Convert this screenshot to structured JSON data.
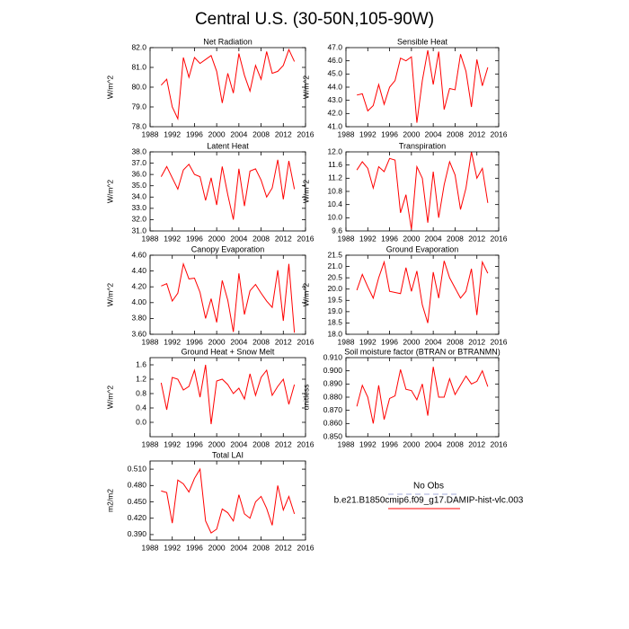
{
  "title": "Central U.S. (30-50N,105-90W)",
  "chart_data": [
    {
      "type": "line",
      "title": "Net Radiation",
      "ylabel": "W/m^2",
      "color": "#ff0000",
      "x": [
        1990,
        1991,
        1992,
        1993,
        1994,
        1995,
        1996,
        1997,
        1998,
        1999,
        2000,
        2001,
        2002,
        2003,
        2004,
        2005,
        2006,
        2007,
        2008,
        2009,
        2010,
        2011,
        2012,
        2013,
        2014
      ],
      "values": [
        80.1,
        80.4,
        79.0,
        78.4,
        81.5,
        80.5,
        81.5,
        81.2,
        81.4,
        81.6,
        80.8,
        79.2,
        80.7,
        79.7,
        81.7,
        80.6,
        79.8,
        81.1,
        80.4,
        81.8,
        80.7,
        80.8,
        81.1,
        81.9,
        81.3
      ],
      "xlim": [
        1988,
        2016
      ],
      "xticks": [
        1988,
        1992,
        1996,
        2000,
        2004,
        2008,
        2012,
        2016
      ],
      "ylim": [
        78,
        82
      ],
      "yticks": [
        {
          "value": 78,
          "label": "78.0"
        },
        {
          "value": 79,
          "label": "79.0"
        },
        {
          "value": 80,
          "label": "80.0"
        },
        {
          "value": 81,
          "label": "81.0"
        },
        {
          "value": 82,
          "label": "82.0"
        }
      ]
    },
    {
      "type": "line",
      "title": "Sensible Heat",
      "ylabel": "W/m^2",
      "color": "#ff0000",
      "x": [
        1990,
        1991,
        1992,
        1993,
        1994,
        1995,
        1996,
        1997,
        1998,
        1999,
        2000,
        2001,
        2002,
        2003,
        2004,
        2005,
        2006,
        2007,
        2008,
        2009,
        2010,
        2011,
        2012,
        2013,
        2014
      ],
      "values": [
        43.4,
        43.5,
        42.2,
        42.6,
        44.2,
        42.7,
        44.0,
        44.5,
        46.2,
        46.0,
        46.3,
        41.3,
        44.5,
        46.8,
        44.2,
        46.7,
        42.3,
        43.9,
        43.8,
        46.5,
        45.2,
        42.5,
        46.1,
        44.1,
        45.5
      ],
      "xlim": [
        1988,
        2016
      ],
      "xticks": [
        1988,
        1992,
        1996,
        2000,
        2004,
        2008,
        2012,
        2016
      ],
      "ylim": [
        41,
        47
      ],
      "yticks": [
        {
          "value": 41,
          "label": "41.0"
        },
        {
          "value": 42,
          "label": "42.0"
        },
        {
          "value": 43,
          "label": "43.0"
        },
        {
          "value": 44,
          "label": "44.0"
        },
        {
          "value": 45,
          "label": "45.0"
        },
        {
          "value": 46,
          "label": "46.0"
        },
        {
          "value": 47,
          "label": "47.0"
        }
      ]
    },
    {
      "type": "line",
      "title": "Latent Heat",
      "ylabel": "W/m^2",
      "color": "#ff0000",
      "x": [
        1990,
        1991,
        1992,
        1993,
        1994,
        1995,
        1996,
        1997,
        1998,
        1999,
        2000,
        2001,
        2002,
        2003,
        2004,
        2005,
        2006,
        2007,
        2008,
        2009,
        2010,
        2011,
        2012,
        2013,
        2014
      ],
      "values": [
        35.8,
        36.7,
        35.7,
        34.7,
        36.4,
        36.9,
        36.0,
        35.8,
        33.7,
        35.7,
        33.3,
        36.7,
        34.2,
        32.0,
        36.5,
        33.2,
        36.3,
        36.5,
        35.5,
        34.0,
        34.8,
        37.3,
        33.8,
        37.2,
        34.7
      ],
      "xlim": [
        1988,
        2016
      ],
      "xticks": [
        1988,
        1992,
        1996,
        2000,
        2004,
        2008,
        2012,
        2016
      ],
      "ylim": [
        31,
        38
      ],
      "yticks": [
        {
          "value": 31,
          "label": "31.0"
        },
        {
          "value": 32,
          "label": "32.0"
        },
        {
          "value": 33,
          "label": "33.0"
        },
        {
          "value": 34,
          "label": "34.0"
        },
        {
          "value": 35,
          "label": "35.0"
        },
        {
          "value": 36,
          "label": "36.0"
        },
        {
          "value": 37,
          "label": "37.0"
        },
        {
          "value": 38,
          "label": "38.0"
        }
      ]
    },
    {
      "type": "line",
      "title": "Transpiration",
      "ylabel": "W/m^2",
      "color": "#ff0000",
      "x": [
        1990,
        1991,
        1992,
        1993,
        1994,
        1995,
        1996,
        1997,
        1998,
        1999,
        2000,
        2001,
        2002,
        2003,
        2004,
        2005,
        2006,
        2007,
        2008,
        2009,
        2010,
        2011,
        2012,
        2013,
        2014
      ],
      "values": [
        11.45,
        11.7,
        11.5,
        10.9,
        11.55,
        11.4,
        11.8,
        11.75,
        10.15,
        10.7,
        9.65,
        11.55,
        11.2,
        9.85,
        11.4,
        10.0,
        11.0,
        11.7,
        11.3,
        10.25,
        10.9,
        12.0,
        11.2,
        11.5,
        10.45
      ],
      "xlim": [
        1988,
        2016
      ],
      "xticks": [
        1988,
        1992,
        1996,
        2000,
        2004,
        2008,
        2012,
        2016
      ],
      "ylim": [
        9.6,
        12.0
      ],
      "yticks": [
        9.6,
        {
          "value": 10,
          "label": "10.0"
        },
        10.4,
        10.8,
        11.2,
        11.6,
        {
          "value": 12,
          "label": "12.0"
        }
      ]
    },
    {
      "type": "line",
      "title": "Canopy Evaporation",
      "ylabel": "W/m^2",
      "color": "#ff0000",
      "x": [
        1990,
        1991,
        1992,
        1993,
        1994,
        1995,
        1996,
        1997,
        1998,
        1999,
        2000,
        2001,
        2002,
        2003,
        2004,
        2005,
        2006,
        2007,
        2008,
        2009,
        2010,
        2011,
        2012,
        2013,
        2014
      ],
      "values": [
        4.21,
        4.24,
        4.02,
        4.12,
        4.49,
        4.3,
        4.31,
        4.13,
        3.8,
        4.05,
        3.75,
        4.28,
        4.03,
        3.63,
        4.37,
        3.85,
        4.15,
        4.23,
        4.12,
        4.02,
        3.94,
        4.41,
        3.77,
        4.49,
        3.62
      ],
      "xlim": [
        1988,
        2016
      ],
      "xticks": [
        1988,
        1992,
        1996,
        2000,
        2004,
        2008,
        2012,
        2016
      ],
      "ylim": [
        3.6,
        4.6
      ],
      "yticks": [
        {
          "value": 3.6,
          "label": "3.60"
        },
        {
          "value": 3.8,
          "label": "3.80"
        },
        {
          "value": 4.0,
          "label": "4.00"
        },
        {
          "value": 4.2,
          "label": "4.20"
        },
        {
          "value": 4.4,
          "label": "4.40"
        },
        {
          "value": 4.6,
          "label": "4.60"
        }
      ]
    },
    {
      "type": "line",
      "title": "Ground Evaporation",
      "ylabel": "W/m^2",
      "color": "#ff0000",
      "x": [
        1990,
        1991,
        1992,
        1993,
        1994,
        1995,
        1996,
        1997,
        1998,
        1999,
        2000,
        2001,
        2002,
        2003,
        2004,
        2005,
        2006,
        2007,
        2008,
        2009,
        2010,
        2011,
        2012,
        2013,
        2014
      ],
      "values": [
        19.95,
        20.65,
        20.1,
        19.6,
        20.5,
        21.2,
        19.9,
        19.85,
        19.8,
        20.95,
        19.9,
        20.8,
        19.3,
        18.5,
        20.75,
        19.6,
        21.25,
        20.5,
        20.05,
        19.6,
        19.9,
        20.9,
        18.85,
        21.2,
        20.7
      ],
      "xlim": [
        1988,
        2016
      ],
      "xticks": [
        1988,
        1992,
        1996,
        2000,
        2004,
        2008,
        2012,
        2016
      ],
      "ylim": [
        18,
        21.5
      ],
      "yticks": [
        {
          "value": 18,
          "label": "18.0"
        },
        18.5,
        {
          "value": 19,
          "label": "19.0"
        },
        19.5,
        {
          "value": 20,
          "label": "20.0"
        },
        20.5,
        {
          "value": 21,
          "label": "21.0"
        },
        21.5
      ]
    },
    {
      "type": "line",
      "title": "Ground Heat + Snow Melt",
      "ylabel": "W/m^2",
      "color": "#ff0000",
      "x": [
        1990,
        1991,
        1992,
        1993,
        1994,
        1995,
        1996,
        1997,
        1998,
        1999,
        2000,
        2001,
        2002,
        2003,
        2004,
        2005,
        2006,
        2007,
        2008,
        2009,
        2010,
        2011,
        2012,
        2013,
        2014
      ],
      "values": [
        1.1,
        0.35,
        1.25,
        1.2,
        0.9,
        1.0,
        1.45,
        0.7,
        1.6,
        -0.05,
        1.15,
        1.2,
        1.05,
        0.8,
        0.95,
        0.65,
        1.35,
        0.75,
        1.25,
        1.45,
        0.75,
        1.0,
        1.2,
        0.5,
        1.05
      ],
      "xlim": [
        1988,
        2016
      ],
      "xticks": [
        1988,
        1992,
        1996,
        2000,
        2004,
        2008,
        2012,
        2016
      ],
      "ylim": [
        -0.4,
        1.8
      ],
      "yticks": [
        {
          "value": 0,
          "label": "0.0"
        },
        0.4,
        0.8,
        1.2,
        1.6
      ]
    },
    {
      "type": "line",
      "title": "Soil moisture factor (BTRAN or BTRANMN)",
      "ylabel": "unitless",
      "color": "#ff0000",
      "x": [
        1990,
        1991,
        1992,
        1993,
        1994,
        1995,
        1996,
        1997,
        1998,
        1999,
        2000,
        2001,
        2002,
        2003,
        2004,
        2005,
        2006,
        2007,
        2008,
        2009,
        2010,
        2011,
        2012,
        2013,
        2014
      ],
      "values": [
        0.873,
        0.889,
        0.88,
        0.86,
        0.889,
        0.863,
        0.879,
        0.881,
        0.901,
        0.886,
        0.885,
        0.878,
        0.89,
        0.866,
        0.903,
        0.88,
        0.88,
        0.894,
        0.882,
        0.889,
        0.896,
        0.89,
        0.892,
        0.9,
        0.888
      ],
      "xlim": [
        1988,
        2016
      ],
      "xticks": [
        1988,
        1992,
        1996,
        2000,
        2004,
        2008,
        2012,
        2016
      ],
      "ylim": [
        0.85,
        0.91
      ],
      "yticks": [
        {
          "value": 0.85,
          "label": "0.850"
        },
        {
          "value": 0.86,
          "label": "0.860"
        },
        {
          "value": 0.87,
          "label": "0.870"
        },
        {
          "value": 0.88,
          "label": "0.880"
        },
        {
          "value": 0.89,
          "label": "0.890"
        },
        {
          "value": 0.9,
          "label": "0.900"
        },
        {
          "value": 0.91,
          "label": "0.910"
        }
      ]
    },
    {
      "type": "line",
      "title": "Total LAI",
      "ylabel": "m2/m2",
      "color": "#ff0000",
      "x": [
        1990,
        1991,
        1992,
        1993,
        1994,
        1995,
        1996,
        1997,
        1998,
        1999,
        2000,
        2001,
        2002,
        2003,
        2004,
        2005,
        2006,
        2007,
        2008,
        2009,
        2010,
        2011,
        2012,
        2013,
        2014
      ],
      "values": [
        0.47,
        0.467,
        0.411,
        0.49,
        0.483,
        0.468,
        0.493,
        0.51,
        0.415,
        0.393,
        0.4,
        0.437,
        0.43,
        0.415,
        0.463,
        0.428,
        0.42,
        0.45,
        0.46,
        0.438,
        0.407,
        0.48,
        0.435,
        0.46,
        0.428
      ],
      "xlim": [
        1988,
        2016
      ],
      "xticks": [
        1988,
        1992,
        1996,
        2000,
        2004,
        2008,
        2012,
        2016
      ],
      "ylim": [
        0.38,
        0.525
      ],
      "yticks": [
        {
          "value": 0.39,
          "label": "0.390"
        },
        {
          "value": 0.42,
          "label": "0.420"
        },
        {
          "value": 0.45,
          "label": "0.450"
        },
        {
          "value": 0.48,
          "label": "0.480"
        },
        {
          "value": 0.51,
          "label": "0.510"
        }
      ]
    }
  ],
  "legend": {
    "items": [
      {
        "label": "No Obs",
        "color": "#a0a8d8",
        "dashed": true
      },
      {
        "label": "b.e21.B1850cmip6.f09_g17.DAMIP-hist-vlc.003",
        "color": "#ff0000",
        "dashed": false
      }
    ]
  }
}
